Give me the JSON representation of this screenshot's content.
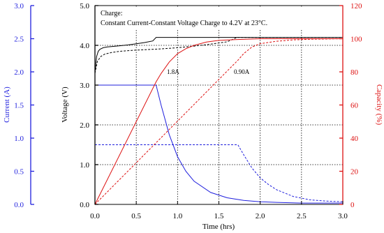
{
  "chart_data": {
    "type": "line",
    "annotation": {
      "line1": "Charge:",
      "line2": "Constant Current-Constant Voltage Charge to 4.2V at 23°C."
    },
    "xlabel": "Time (hrs)",
    "xlim": [
      0,
      3.0
    ],
    "xticks": [
      "0.0",
      "0.5",
      "1.0",
      "1.5",
      "2.0",
      "2.5",
      "3.0"
    ],
    "axes": {
      "current": {
        "label": "Current (A)",
        "lim": [
          0,
          3.0
        ],
        "ticks": [
          "0.0",
          "0.5",
          "1.0",
          "1.5",
          "2.0",
          "2.5",
          "3.0"
        ],
        "color": "#1f1fdd"
      },
      "voltage": {
        "label": "Voltage (V)",
        "lim": [
          0,
          5.0
        ],
        "ticks": [
          "0.0",
          "1.0",
          "2.0",
          "3.0",
          "4.0",
          "5.0"
        ],
        "color": "#000000"
      },
      "capacity": {
        "label": "Capacity (%)",
        "lim": [
          0,
          120
        ],
        "ticks": [
          "0",
          "20",
          "40",
          "60",
          "80",
          "100",
          "120"
        ],
        "color": "#dd1111"
      }
    },
    "grid": true,
    "curve_labels": [
      "1.8A",
      "0.90A"
    ],
    "series": [
      {
        "rate": "1.8A",
        "axis": "voltage",
        "style": "solid",
        "color": "#000000",
        "x": [
          0,
          0.02,
          0.04,
          0.06,
          0.1,
          0.15,
          0.2,
          0.3,
          0.4,
          0.5,
          0.6,
          0.7,
          0.74,
          3.0
        ],
        "y": [
          3.3,
          3.72,
          3.85,
          3.9,
          3.94,
          3.96,
          3.97,
          3.99,
          4.01,
          4.04,
          4.07,
          4.11,
          4.2,
          4.2
        ]
      },
      {
        "rate": "0.90A",
        "axis": "voltage",
        "style": "dashed",
        "color": "#000000",
        "x": [
          0,
          0.03,
          0.07,
          0.12,
          0.2,
          0.3,
          0.5,
          0.8,
          1.0,
          1.2,
          1.4,
          1.6,
          1.72,
          3.0
        ],
        "y": [
          3.3,
          3.6,
          3.72,
          3.78,
          3.82,
          3.85,
          3.88,
          3.91,
          3.94,
          3.98,
          4.03,
          4.09,
          4.2,
          4.2
        ]
      },
      {
        "rate": "1.8A",
        "axis": "current",
        "style": "solid",
        "color": "#1f1fdd",
        "x": [
          0,
          0.74,
          0.8,
          0.9,
          1.0,
          1.1,
          1.2,
          1.4,
          1.6,
          1.8,
          2.0,
          2.2,
          2.5,
          3.0
        ],
        "y": [
          1.8,
          1.8,
          1.5,
          1.05,
          0.72,
          0.5,
          0.35,
          0.18,
          0.1,
          0.06,
          0.04,
          0.03,
          0.02,
          0.02
        ]
      },
      {
        "rate": "0.90A",
        "axis": "current",
        "style": "dashed",
        "color": "#1f1fdd",
        "x": [
          0,
          1.73,
          1.8,
          1.9,
          2.0,
          2.1,
          2.2,
          2.4,
          2.6,
          2.8,
          3.0
        ],
        "y": [
          0.9,
          0.9,
          0.75,
          0.55,
          0.4,
          0.3,
          0.22,
          0.12,
          0.07,
          0.05,
          0.04
        ]
      },
      {
        "rate": "1.8A",
        "axis": "capacity",
        "style": "solid",
        "color": "#dd1111",
        "x": [
          0,
          0.74,
          0.8,
          0.9,
          1.0,
          1.1,
          1.2,
          1.35,
          1.5,
          1.7,
          2.0,
          2.5,
          3.0
        ],
        "y": [
          0,
          74,
          79,
          86,
          91,
          94,
          96,
          98,
          99,
          99.5,
          100,
          100,
          100
        ]
      },
      {
        "rate": "0.90A",
        "axis": "capacity",
        "style": "dashed",
        "color": "#dd1111",
        "x": [
          0,
          1.73,
          1.8,
          1.9,
          2.0,
          2.2,
          2.4,
          2.6,
          3.0
        ],
        "y": [
          0,
          87,
          91,
          95,
          97,
          98.5,
          99.3,
          99.7,
          100
        ]
      }
    ]
  }
}
